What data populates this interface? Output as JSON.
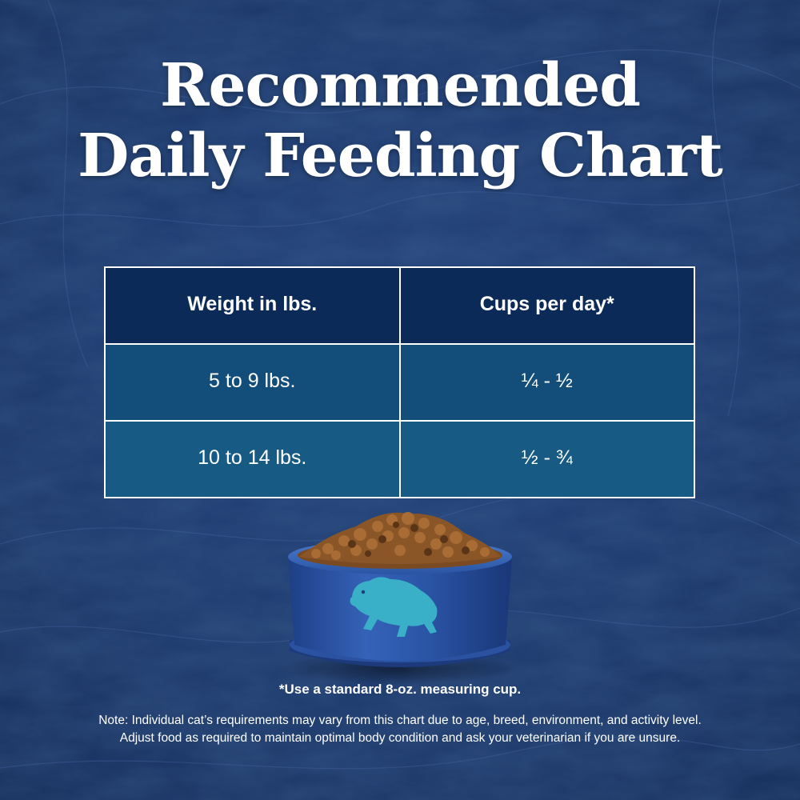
{
  "title": {
    "line1": "Recommended",
    "line2": "Daily Feeding Chart"
  },
  "table": {
    "headers": [
      "Weight in lbs.",
      "Cups per day*"
    ],
    "rows": [
      [
        "5 to 9 lbs.",
        "¼ - ½"
      ],
      [
        "10 to 14 lbs.",
        "½ - ¾"
      ]
    ]
  },
  "image": {
    "icon": "bison-logo-icon",
    "subject": "food-bowl-with-kibble"
  },
  "footnote": "*Use a standard 8-oz. measuring cup.",
  "note": {
    "line1": "Note: Individual cat’s requirements may vary from this chart due to age, breed, environment, and activity level.",
    "line2": "Adjust food as required to maintain optimal body condition and ask your veterinarian if you are unsure."
  },
  "colors": {
    "background": "#1d3a70",
    "header_cell": "#0b2a58",
    "row_1_cell": "#134e7a",
    "row_2_cell": "#175a84",
    "bowl": "#2a55a6",
    "logo": "#3ab0c8",
    "text": "#ffffff"
  }
}
